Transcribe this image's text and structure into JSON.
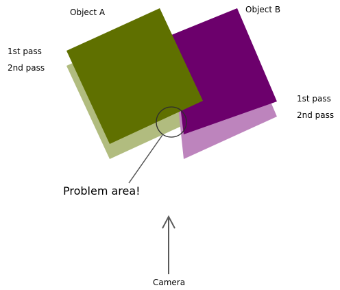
{
  "object_a": {
    "label": "Object A",
    "first_pass_label": "1st pass",
    "second_pass_label": "2nd pass",
    "first_pass_color": "#5f7000",
    "second_pass_color": "#b1bc7f"
  },
  "object_b": {
    "label": "Object B",
    "first_pass_label": "1st pass",
    "second_pass_label": "2nd pass",
    "first_pass_color": "#6c006c",
    "second_pass_color": "#bd84bd"
  },
  "problem_area": {
    "label": "Problem area!"
  },
  "camera": {
    "label": "Camera"
  }
}
